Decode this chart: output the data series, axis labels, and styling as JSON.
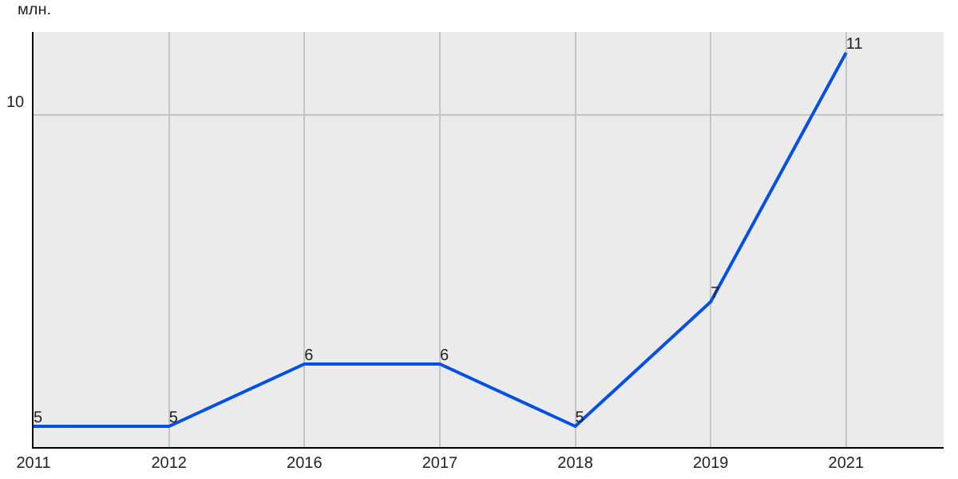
{
  "chart_data": {
    "type": "line",
    "ylabel": "млн.",
    "categories": [
      "2011",
      "2012",
      "2016",
      "2017",
      "2018",
      "2019",
      "2021"
    ],
    "series": [
      {
        "color": "#0050e6",
        "values": [
          5,
          5,
          6,
          6,
          5,
          7,
          11
        ]
      }
    ],
    "ref_lines": [
      {
        "axis": "y",
        "value": 10,
        "label": "10",
        "color": "#c4c4c4"
      }
    ],
    "grid": "x",
    "data_labels": true,
    "marker": "none",
    "line_style": "solid"
  }
}
